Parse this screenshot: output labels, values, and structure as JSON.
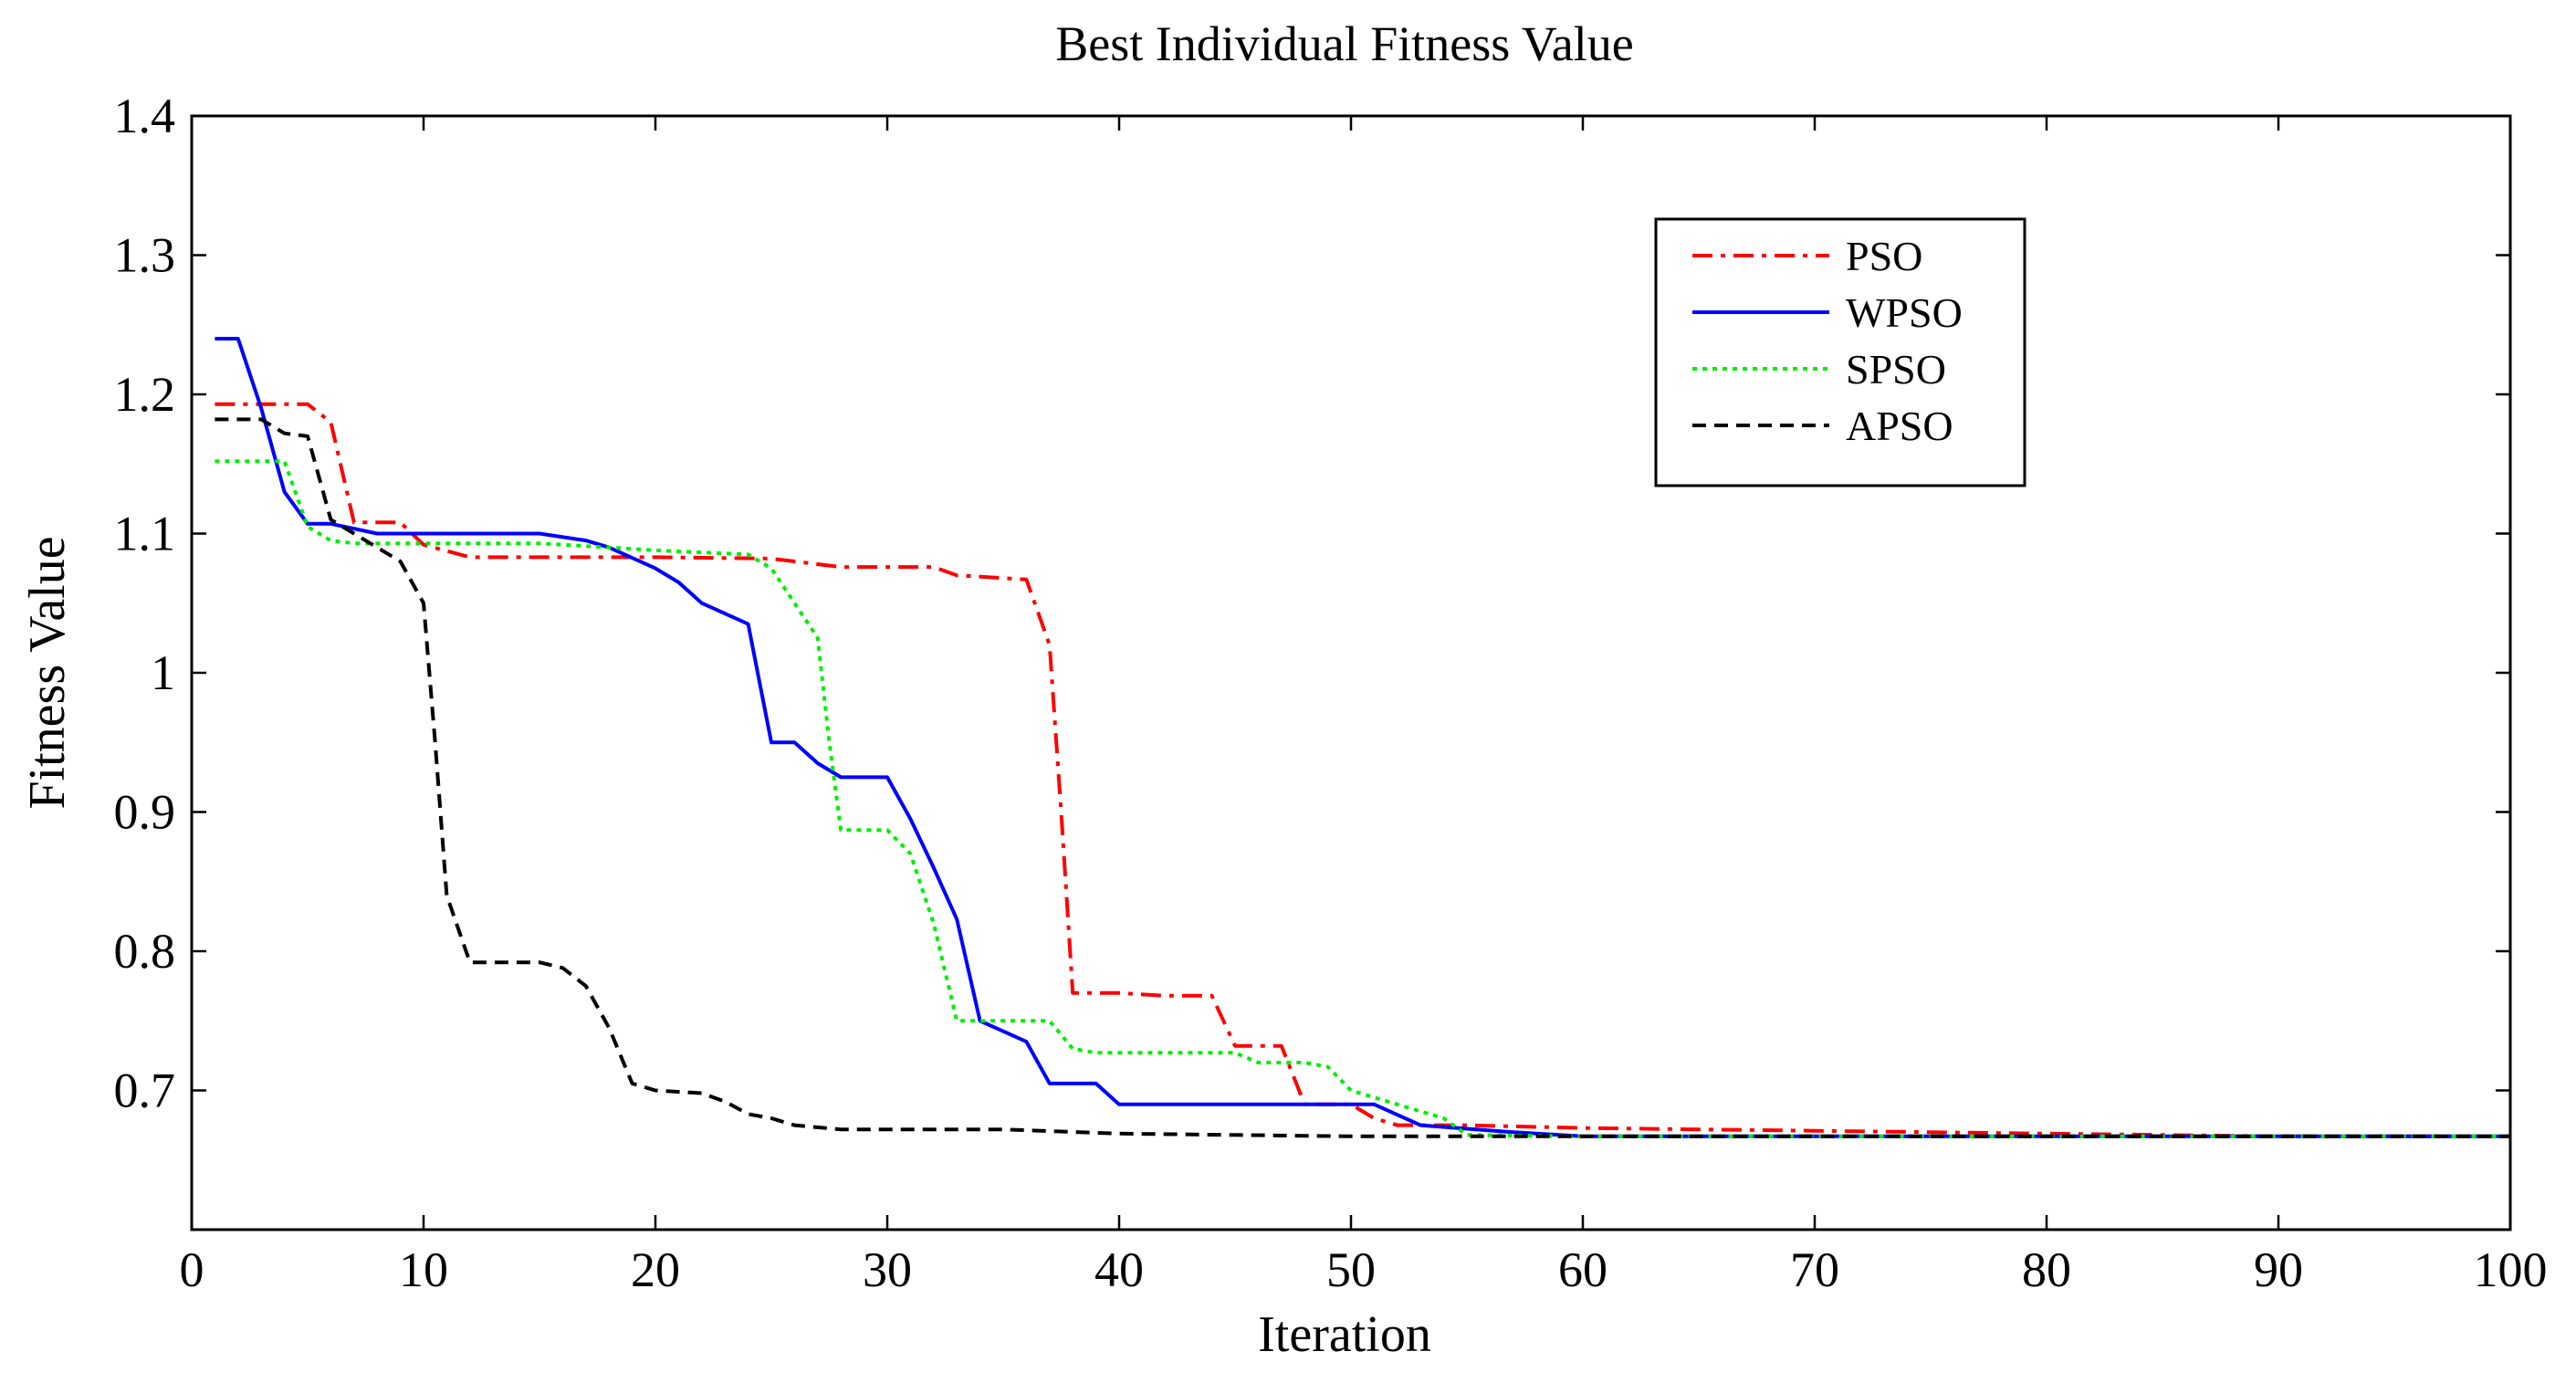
{
  "chart_data": {
    "type": "line",
    "title": "Best Individual Fitness Value",
    "xlabel": "Iteration",
    "ylabel": "Fitness Value",
    "xlim": [
      0,
      100
    ],
    "ylim": [
      0.6,
      1.4
    ],
    "xticks": [
      0,
      10,
      20,
      30,
      40,
      50,
      60,
      70,
      80,
      90,
      100
    ],
    "yticks": [
      0.7,
      0.8,
      0.9,
      1,
      1.1,
      1.2,
      1.3,
      1.4
    ],
    "xtick_labels": [
      "0",
      "10",
      "20",
      "30",
      "40",
      "50",
      "60",
      "70",
      "80",
      "90",
      "100"
    ],
    "ytick_labels": [
      "0.7",
      "0.8",
      "0.9",
      "1",
      "1.1",
      "1.2",
      "1.3",
      "1.4"
    ],
    "grid": false,
    "legend_position": "top-right",
    "series": [
      {
        "name": "PSO",
        "color": "#ff0000",
        "style": "dash-dot",
        "x": [
          1,
          5,
          6,
          7,
          9,
          10,
          12,
          15,
          20,
          25,
          28,
          32,
          33,
          36,
          37,
          37.5,
          38,
          39,
          40,
          42,
          44,
          45,
          47,
          48,
          50,
          51,
          52,
          55,
          60,
          70,
          80,
          90,
          100
        ],
        "y": [
          1.193,
          1.193,
          1.18,
          1.108,
          1.108,
          1.092,
          1.083,
          1.083,
          1.083,
          1.082,
          1.076,
          1.076,
          1.07,
          1.067,
          1.02,
          0.9,
          0.77,
          0.77,
          0.77,
          0.768,
          0.768,
          0.732,
          0.732,
          0.69,
          0.69,
          0.68,
          0.675,
          0.675,
          0.673,
          0.671,
          0.669,
          0.667,
          0.667
        ]
      },
      {
        "name": "WPSO",
        "color": "#0000ff",
        "style": "solid",
        "x": [
          1,
          2,
          3,
          4,
          5,
          6,
          8,
          10,
          15,
          17,
          18,
          20,
          21,
          22,
          24,
          25,
          26,
          27,
          28,
          30,
          31,
          32,
          33,
          34,
          36,
          37,
          39,
          40,
          42,
          45,
          48,
          50,
          51,
          53,
          57,
          60,
          70,
          80,
          90,
          100
        ],
        "y": [
          1.24,
          1.24,
          1.19,
          1.13,
          1.107,
          1.107,
          1.1,
          1.1,
          1.1,
          1.095,
          1.09,
          1.075,
          1.065,
          1.05,
          1.035,
          0.95,
          0.95,
          0.935,
          0.925,
          0.925,
          0.895,
          0.86,
          0.823,
          0.75,
          0.735,
          0.705,
          0.705,
          0.69,
          0.69,
          0.69,
          0.69,
          0.69,
          0.69,
          0.675,
          0.67,
          0.667,
          0.667,
          0.667,
          0.667,
          0.667
        ]
      },
      {
        "name": "SPSO",
        "color": "#00ee00",
        "style": "dotted",
        "x": [
          1,
          4,
          5,
          6,
          7,
          10,
          15,
          20,
          24,
          25,
          26,
          27,
          27.5,
          28,
          30,
          31,
          32,
          33,
          35,
          37,
          38,
          39,
          45,
          46,
          48,
          49,
          50,
          52,
          54,
          55,
          60,
          70,
          80,
          90,
          100
        ],
        "y": [
          1.152,
          1.152,
          1.105,
          1.095,
          1.093,
          1.093,
          1.093,
          1.088,
          1.085,
          1.075,
          1.05,
          1.025,
          0.95,
          0.887,
          0.887,
          0.87,
          0.82,
          0.75,
          0.75,
          0.75,
          0.73,
          0.727,
          0.727,
          0.72,
          0.72,
          0.717,
          0.7,
          0.69,
          0.68,
          0.668,
          0.667,
          0.667,
          0.667,
          0.667,
          0.667
        ]
      },
      {
        "name": "APSO",
        "color": "#000000",
        "style": "dashed",
        "x": [
          1,
          3,
          4,
          5,
          6,
          7,
          8,
          9,
          10,
          10.5,
          11,
          12,
          13,
          15,
          16,
          17,
          18,
          19,
          20,
          22,
          23,
          24,
          25,
          26,
          28,
          30,
          35,
          40,
          45,
          50,
          60,
          70,
          80,
          90,
          100
        ],
        "y": [
          1.182,
          1.182,
          1.172,
          1.17,
          1.11,
          1.1,
          1.09,
          1.08,
          1.05,
          0.95,
          0.84,
          0.792,
          0.792,
          0.792,
          0.788,
          0.775,
          0.745,
          0.705,
          0.7,
          0.698,
          0.692,
          0.683,
          0.68,
          0.675,
          0.672,
          0.672,
          0.672,
          0.669,
          0.668,
          0.667,
          0.667,
          0.667,
          0.667,
          0.667,
          0.667
        ]
      }
    ]
  }
}
